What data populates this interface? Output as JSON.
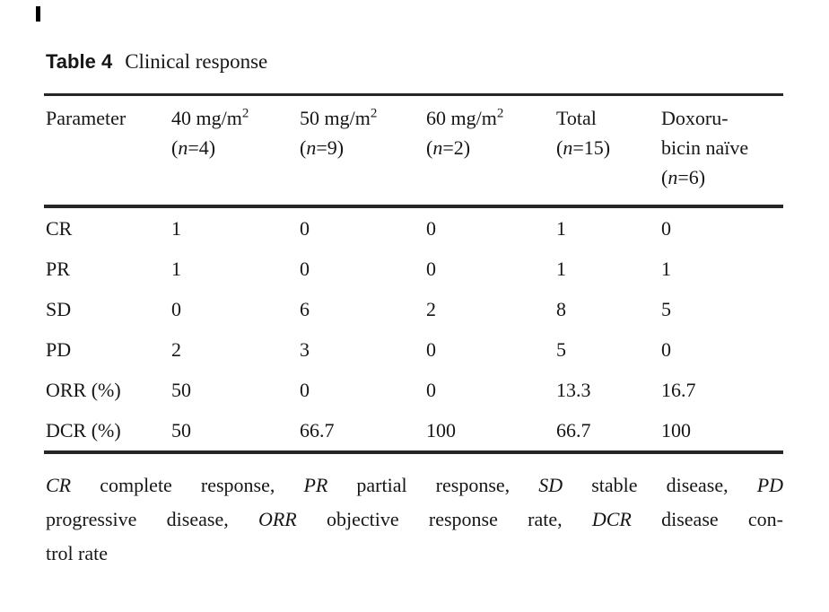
{
  "caption": {
    "label": "Table 4",
    "title": "Clinical response"
  },
  "table": {
    "header": {
      "param": "Parameter",
      "cols": [
        {
          "line1": "40 mg/m",
          "sup": "2",
          "line2": "",
          "n_label": "n",
          "n_eq": "=4"
        },
        {
          "line1": "50 mg/m",
          "sup": "2",
          "line2": "",
          "n_label": "n",
          "n_eq": "=9"
        },
        {
          "line1": "60 mg/m",
          "sup": "2",
          "line2": "",
          "n_label": "n",
          "n_eq": "=2"
        },
        {
          "line1": "Total",
          "sup": "",
          "line2": "",
          "n_label": "n",
          "n_eq": "=15"
        },
        {
          "line1": "Doxoru-",
          "sup": "",
          "line2": "bicin naïve",
          "n_label": "n",
          "n_eq": "=6"
        }
      ]
    },
    "rows": [
      {
        "param": "CR",
        "values": [
          "1",
          "0",
          "0",
          "1",
          "0"
        ]
      },
      {
        "param": "PR",
        "values": [
          "1",
          "0",
          "0",
          "1",
          "1"
        ]
      },
      {
        "param": "SD",
        "values": [
          "0",
          "6",
          "2",
          "8",
          "5"
        ]
      },
      {
        "param": "PD",
        "values": [
          "2",
          "3",
          "0",
          "5",
          "0"
        ]
      },
      {
        "param": "ORR (%)",
        "values": [
          "50",
          "0",
          "0",
          "13.3",
          "16.7"
        ]
      },
      {
        "param": "DCR (%)",
        "values": [
          "50",
          "66.7",
          "100",
          "66.7",
          "100"
        ]
      }
    ]
  },
  "footnote": {
    "lines": [
      {
        "justify": true,
        "segments": [
          {
            "text": "CR",
            "italic": true
          },
          {
            "text": " complete response, ",
            "italic": false
          },
          {
            "text": "PR",
            "italic": true
          },
          {
            "text": " partial response, ",
            "italic": false
          },
          {
            "text": "SD",
            "italic": true
          },
          {
            "text": " stable disease, ",
            "italic": false
          },
          {
            "text": "PD",
            "italic": true
          }
        ]
      },
      {
        "justify": true,
        "segments": [
          {
            "text": "progressive disease, ",
            "italic": false
          },
          {
            "text": "ORR",
            "italic": true
          },
          {
            "text": " objective response rate, ",
            "italic": false
          },
          {
            "text": "DCR",
            "italic": true
          },
          {
            "text": " disease con-",
            "italic": false
          }
        ]
      },
      {
        "justify": false,
        "segments": [
          {
            "text": "trol rate",
            "italic": false
          }
        ]
      }
    ]
  },
  "colors": {
    "text": "#161616",
    "rule": "#262626",
    "background": "#ffffff"
  }
}
